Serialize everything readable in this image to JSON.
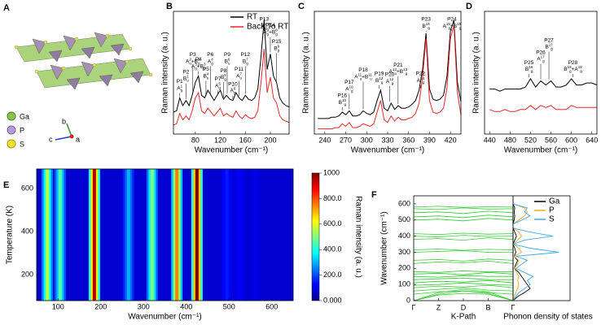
{
  "panel_a": {
    "label": "A",
    "legend": [
      "Ga",
      "P",
      "S"
    ],
    "axes": [
      "b",
      "c",
      "a"
    ]
  },
  "chart_data": [
    {
      "type": "line",
      "panel": "B",
      "ylabel": "Raman intensity (a. u.)",
      "xlabel": "Wavenumber (cm⁻¹)",
      "xlim": [
        45,
        230
      ],
      "xticks": [
        80,
        120,
        160,
        200
      ],
      "ylim": [
        0,
        95
      ],
      "legend": "upper right",
      "x": [
        45,
        50,
        55,
        60,
        65,
        70,
        75,
        80,
        85,
        90,
        95,
        100,
        105,
        110,
        115,
        120,
        125,
        130,
        135,
        140,
        145,
        150,
        155,
        160,
        165,
        170,
        175,
        180,
        185,
        190,
        195,
        200,
        205,
        210,
        215,
        220,
        225,
        230
      ],
      "series": [
        {
          "name": "RT",
          "color": "#000000",
          "values": [
            17,
            18,
            28,
            22,
            26,
            22,
            30,
            40,
            45,
            30,
            28,
            34,
            30,
            26,
            30,
            34,
            27,
            30,
            27,
            26,
            32,
            28,
            26,
            30,
            27,
            26,
            28,
            35,
            60,
            88,
            50,
            62,
            45,
            40,
            28,
            24,
            22,
            21
          ]
        },
        {
          "name": "Back To RT",
          "color": "#e8262a",
          "values": [
            7,
            8,
            16,
            11,
            14,
            11,
            18,
            28,
            32,
            18,
            16,
            20,
            17,
            14,
            17,
            20,
            14,
            16,
            14,
            13,
            18,
            14,
            12,
            15,
            13,
            12,
            13,
            18,
            40,
            66,
            32,
            44,
            28,
            24,
            14,
            11,
            10,
            9
          ]
        }
      ],
      "peaks": [
        {
          "label": "P1",
          "x": 55,
          "modes": [
            [
              "A",
              "g",
              "1"
            ]
          ]
        },
        {
          "label": "P2",
          "x": 65,
          "modes": [
            [
              "B",
              "u",
              "1"
            ]
          ]
        },
        {
          "label": "P3",
          "x": 76,
          "modes": [
            [
              "A",
              "u",
              "2"
            ],
            [
              "+B",
              "g",
              "2"
            ]
          ]
        },
        {
          "label": "P4",
          "x": 85,
          "modes": [
            [
              "A",
              "g",
              "3"
            ],
            [
              "+B",
              "g",
              "3"
            ]
          ]
        },
        {
          "label": "P5",
          "x": 97,
          "modes": [
            [
              "B",
              "u",
              "4"
            ]
          ]
        },
        {
          "label": "P6",
          "x": 104,
          "modes": [
            [
              "A",
              "g",
              "4"
            ]
          ]
        },
        {
          "label": "P7",
          "x": 116,
          "modes": [
            [
              "A",
              "g",
              "5"
            ]
          ]
        },
        {
          "label": "P8",
          "x": 125,
          "modes": [
            [
              "B",
              "g",
              "5"
            ]
          ]
        },
        {
          "label": "P9",
          "x": 131,
          "modes": [
            [
              "B",
              "u",
              "6"
            ]
          ]
        },
        {
          "label": "P10",
          "x": 140,
          "modes": [
            [
              "A",
              "g",
              "6"
            ]
          ]
        },
        {
          "label": "P11",
          "x": 150,
          "modes": [
            [
              "A",
              "u",
              "7"
            ]
          ]
        },
        {
          "label": "P12",
          "x": 160,
          "modes": [
            [
              "B",
              "g",
              "7"
            ]
          ]
        },
        {
          "label": "P13",
          "x": 190,
          "modes": [
            [
              "A",
              "g",
              "8"
            ]
          ]
        },
        {
          "label": "P14",
          "x": 200,
          "modes": [
            [
              "A",
              "g",
              "9"
            ],
            [
              "+B",
              "g",
              "8"
            ]
          ]
        },
        {
          "label": "P15",
          "x": 210,
          "modes": [
            [
              "B",
              "g",
              "9"
            ]
          ]
        }
      ]
    },
    {
      "type": "line",
      "panel": "C",
      "ylabel": "Raman intensity (a. u.)",
      "xlabel": "Wavenumber (cm⁻¹)",
      "xlim": [
        225,
        435
      ],
      "xticks": [
        240,
        270,
        300,
        330,
        360,
        390,
        420
      ],
      "ylim": [
        0,
        95
      ],
      "x": [
        230,
        235,
        240,
        245,
        250,
        255,
        260,
        265,
        270,
        275,
        280,
        285,
        290,
        295,
        300,
        305,
        310,
        315,
        320,
        325,
        330,
        335,
        340,
        345,
        350,
        355,
        360,
        365,
        370,
        375,
        380,
        385,
        390,
        395,
        400,
        405,
        410,
        415,
        420,
        425,
        430,
        435
      ],
      "series": [
        {
          "color": "#000000",
          "values": [
            12,
            12,
            12,
            12,
            13,
            13,
            14,
            17,
            15,
            18,
            14,
            14,
            15,
            18,
            16,
            15,
            17,
            26,
            34,
            20,
            18,
            24,
            19,
            22,
            20,
            20,
            21,
            23,
            26,
            34,
            50,
            78,
            35,
            27,
            26,
            27,
            30,
            45,
            80,
            88,
            40,
            25
          ]
        },
        {
          "color": "#e8262a",
          "values": [
            4,
            4,
            4,
            4,
            4,
            5,
            5,
            8,
            6,
            9,
            5,
            5,
            6,
            8,
            7,
            6,
            8,
            17,
            26,
            11,
            9,
            14,
            10,
            13,
            11,
            11,
            12,
            13,
            16,
            24,
            44,
            74,
            26,
            17,
            16,
            17,
            20,
            36,
            74,
            84,
            32,
            15
          ]
        }
      ],
      "peaks": [
        {
          "label": "P16",
          "x": 265,
          "modes": [
            [
              "B",
              "g",
              "10"
            ]
          ]
        },
        {
          "label": "P17",
          "x": 275,
          "modes": [
            [
              "A",
              "g",
              "10"
            ]
          ]
        },
        {
          "label": "P18",
          "x": 295,
          "modes": [
            [
              "A",
              "u",
              "11"
            ],
            [
              "+B",
              "u",
              "11"
            ]
          ]
        },
        {
          "label": "P19",
          "x": 318,
          "modes": [
            [
              "B",
              "g",
              "12"
            ]
          ]
        },
        {
          "label": "P20",
          "x": 333,
          "modes": [
            [
              "A",
              "g",
              "12"
            ]
          ]
        },
        {
          "label": "P21",
          "x": 345,
          "modes": [
            [
              "A",
              "u",
              "13"
            ],
            [
              "+B",
              "g",
              "13"
            ]
          ]
        },
        {
          "label": "P22",
          "x": 377,
          "modes": [
            [
              "A",
              "g",
              "14"
            ]
          ]
        },
        {
          "label": "P23",
          "x": 385,
          "modes": [
            [
              "B",
              "g",
              "14"
            ]
          ]
        },
        {
          "label": "P24",
          "x": 422,
          "modes": [
            [
              "A",
              "g",
              "15"
            ],
            [
              "+B",
              "g",
              "15"
            ]
          ]
        }
      ]
    },
    {
      "type": "line",
      "panel": "D",
      "ylabel": "Raman intensity (a. u.)",
      "xlabel": "Wavenumber (cm⁻¹)",
      "xlim": [
        430,
        650
      ],
      "xticks": [
        440,
        480,
        520,
        560,
        600,
        640
      ],
      "ylim": [
        0,
        60
      ],
      "x": [
        440,
        450,
        460,
        470,
        480,
        490,
        500,
        510,
        520,
        530,
        540,
        550,
        560,
        570,
        580,
        590,
        600,
        610,
        620,
        630,
        640,
        650
      ],
      "series": [
        {
          "color": "#000000",
          "values": [
            22,
            22,
            21,
            22,
            22,
            22,
            22,
            23,
            27,
            23,
            26,
            24,
            26,
            23,
            23,
            24,
            27,
            24,
            24,
            25,
            25,
            24
          ]
        },
        {
          "color": "#e8262a",
          "values": [
            12,
            11,
            11,
            12,
            11,
            11,
            12,
            12,
            14,
            12,
            14,
            13,
            14,
            12,
            12,
            12,
            14,
            13,
            13,
            13,
            13,
            13
          ]
        }
      ],
      "peaks": [
        {
          "label": "P25",
          "x": 517,
          "modes": [
            [
              "B",
              "g",
              "16"
            ]
          ]
        },
        {
          "label": "P26",
          "x": 540,
          "modes": [
            [
              "A",
              "g",
              "17"
            ]
          ]
        },
        {
          "label": "P27",
          "x": 556,
          "modes": [
            [
              "B",
              "g",
              "17"
            ]
          ]
        },
        {
          "label": "P28",
          "x": 603,
          "modes": [
            [
              "B",
              "g",
              "18"
            ],
            [
              "+A",
              "g",
              "18"
            ]
          ]
        }
      ]
    },
    {
      "type": "heatmap",
      "panel": "E",
      "xlabel": "Wavenumber (cm⁻¹)",
      "ylabel": "Temperature (K)",
      "xlim": [
        50,
        650
      ],
      "xticks": [
        100,
        200,
        300,
        400,
        500,
        600
      ],
      "ylim": [
        80,
        690
      ],
      "yticks": [
        200,
        400,
        600
      ],
      "x": [
        75,
        105,
        185,
        265,
        320,
        378,
        425,
        495,
        525,
        560
      ],
      "values": [
        550,
        450,
        950,
        300,
        500,
        750,
        1000,
        150,
        120,
        100
      ],
      "clim": [
        0,
        1000
      ],
      "colorbar_label": "Raman intensity (a. u.)",
      "colorbar_ticks": [
        {
          "value": 0,
          "label": "0.000"
        },
        {
          "value": 200,
          "label": "200.0"
        },
        {
          "value": 400,
          "label": "400.0"
        },
        {
          "value": 600,
          "label": "600.0"
        },
        {
          "value": 800,
          "label": "800.0"
        },
        1000
      ]
    },
    {
      "type": "dispersion",
      "panel": "F",
      "xlabel": "K-Path",
      "ylabel": "Wavenumber (cm⁻¹)",
      "color": "#33cc33",
      "categories": [
        "Γ",
        "Z",
        "D",
        "B",
        "Γ"
      ],
      "ylim": [
        0,
        650
      ],
      "yticks": [
        0,
        100,
        200,
        300,
        400,
        500,
        600
      ],
      "bands": [
        [
          0,
          40,
          60,
          45,
          0
        ],
        [
          0,
          50,
          70,
          55,
          0
        ],
        [
          0,
          35,
          45,
          40,
          0
        ],
        [
          40,
          55,
          60,
          50,
          40
        ],
        [
          60,
          70,
          80,
          65,
          60
        ],
        [
          80,
          90,
          85,
          95,
          80
        ],
        [
          95,
          100,
          110,
          100,
          95
        ],
        [
          110,
          120,
          115,
          125,
          110
        ],
        [
          130,
          135,
          140,
          130,
          130
        ],
        [
          150,
          145,
          155,
          150,
          150
        ],
        [
          165,
          170,
          160,
          175,
          165
        ],
        [
          180,
          175,
          185,
          178,
          180
        ],
        [
          230,
          240,
          235,
          245,
          230
        ],
        [
          250,
          255,
          245,
          258,
          250
        ],
        [
          300,
          305,
          310,
          300,
          300
        ],
        [
          315,
          320,
          312,
          318,
          315
        ],
        [
          380,
          385,
          375,
          390,
          380
        ],
        [
          400,
          395,
          405,
          398,
          400
        ],
        [
          415,
          410,
          418,
          412,
          415
        ],
        [
          500,
          505,
          495,
          510,
          500
        ],
        [
          520,
          525,
          515,
          530,
          520
        ],
        [
          545,
          550,
          540,
          555,
          545
        ],
        [
          570,
          565,
          575,
          568,
          570
        ],
        [
          580,
          585,
          578,
          582,
          580
        ]
      ]
    },
    {
      "type": "dos",
      "xlabel": "Phonon density of states",
      "xlim": [
        0,
        1
      ],
      "ylim": [
        0,
        650
      ],
      "legend": "upper right",
      "x": [
        0,
        25,
        50,
        75,
        100,
        125,
        150,
        175,
        200,
        225,
        250,
        275,
        300,
        325,
        350,
        375,
        400,
        425,
        450,
        475,
        500,
        525,
        550,
        575,
        600,
        625,
        650
      ],
      "series": [
        {
          "name": "Ga",
          "color": "#000000",
          "values": [
            0,
            0.08,
            0.2,
            0.3,
            0.25,
            0.2,
            0.15,
            0.1,
            0.02,
            0.05,
            0.08,
            0.02,
            0.05,
            0.03,
            0,
            0.03,
            0.06,
            0.03,
            0,
            0,
            0.02,
            0.03,
            0.02,
            0.03,
            0,
            0,
            0
          ]
        },
        {
          "name": "P",
          "color": "#f5a623",
          "values": [
            0,
            0.02,
            0.05,
            0.08,
            0.1,
            0.08,
            0.1,
            0.06,
            0.02,
            0.08,
            0.1,
            0.02,
            0.15,
            0.1,
            0,
            0.08,
            0.15,
            0.1,
            0,
            0,
            0.1,
            0.2,
            0.25,
            0.2,
            0,
            0,
            0
          ]
        },
        {
          "name": "S",
          "color": "#3fa9f5",
          "values": [
            0,
            0.05,
            0.1,
            0.2,
            0.3,
            0.25,
            0.35,
            0.2,
            0.05,
            0.15,
            0.25,
            0.05,
            0.8,
            0.3,
            0,
            0.2,
            0.7,
            0.3,
            0,
            0,
            0.15,
            0.3,
            0.2,
            0.25,
            0,
            0,
            0
          ]
        }
      ]
    }
  ]
}
